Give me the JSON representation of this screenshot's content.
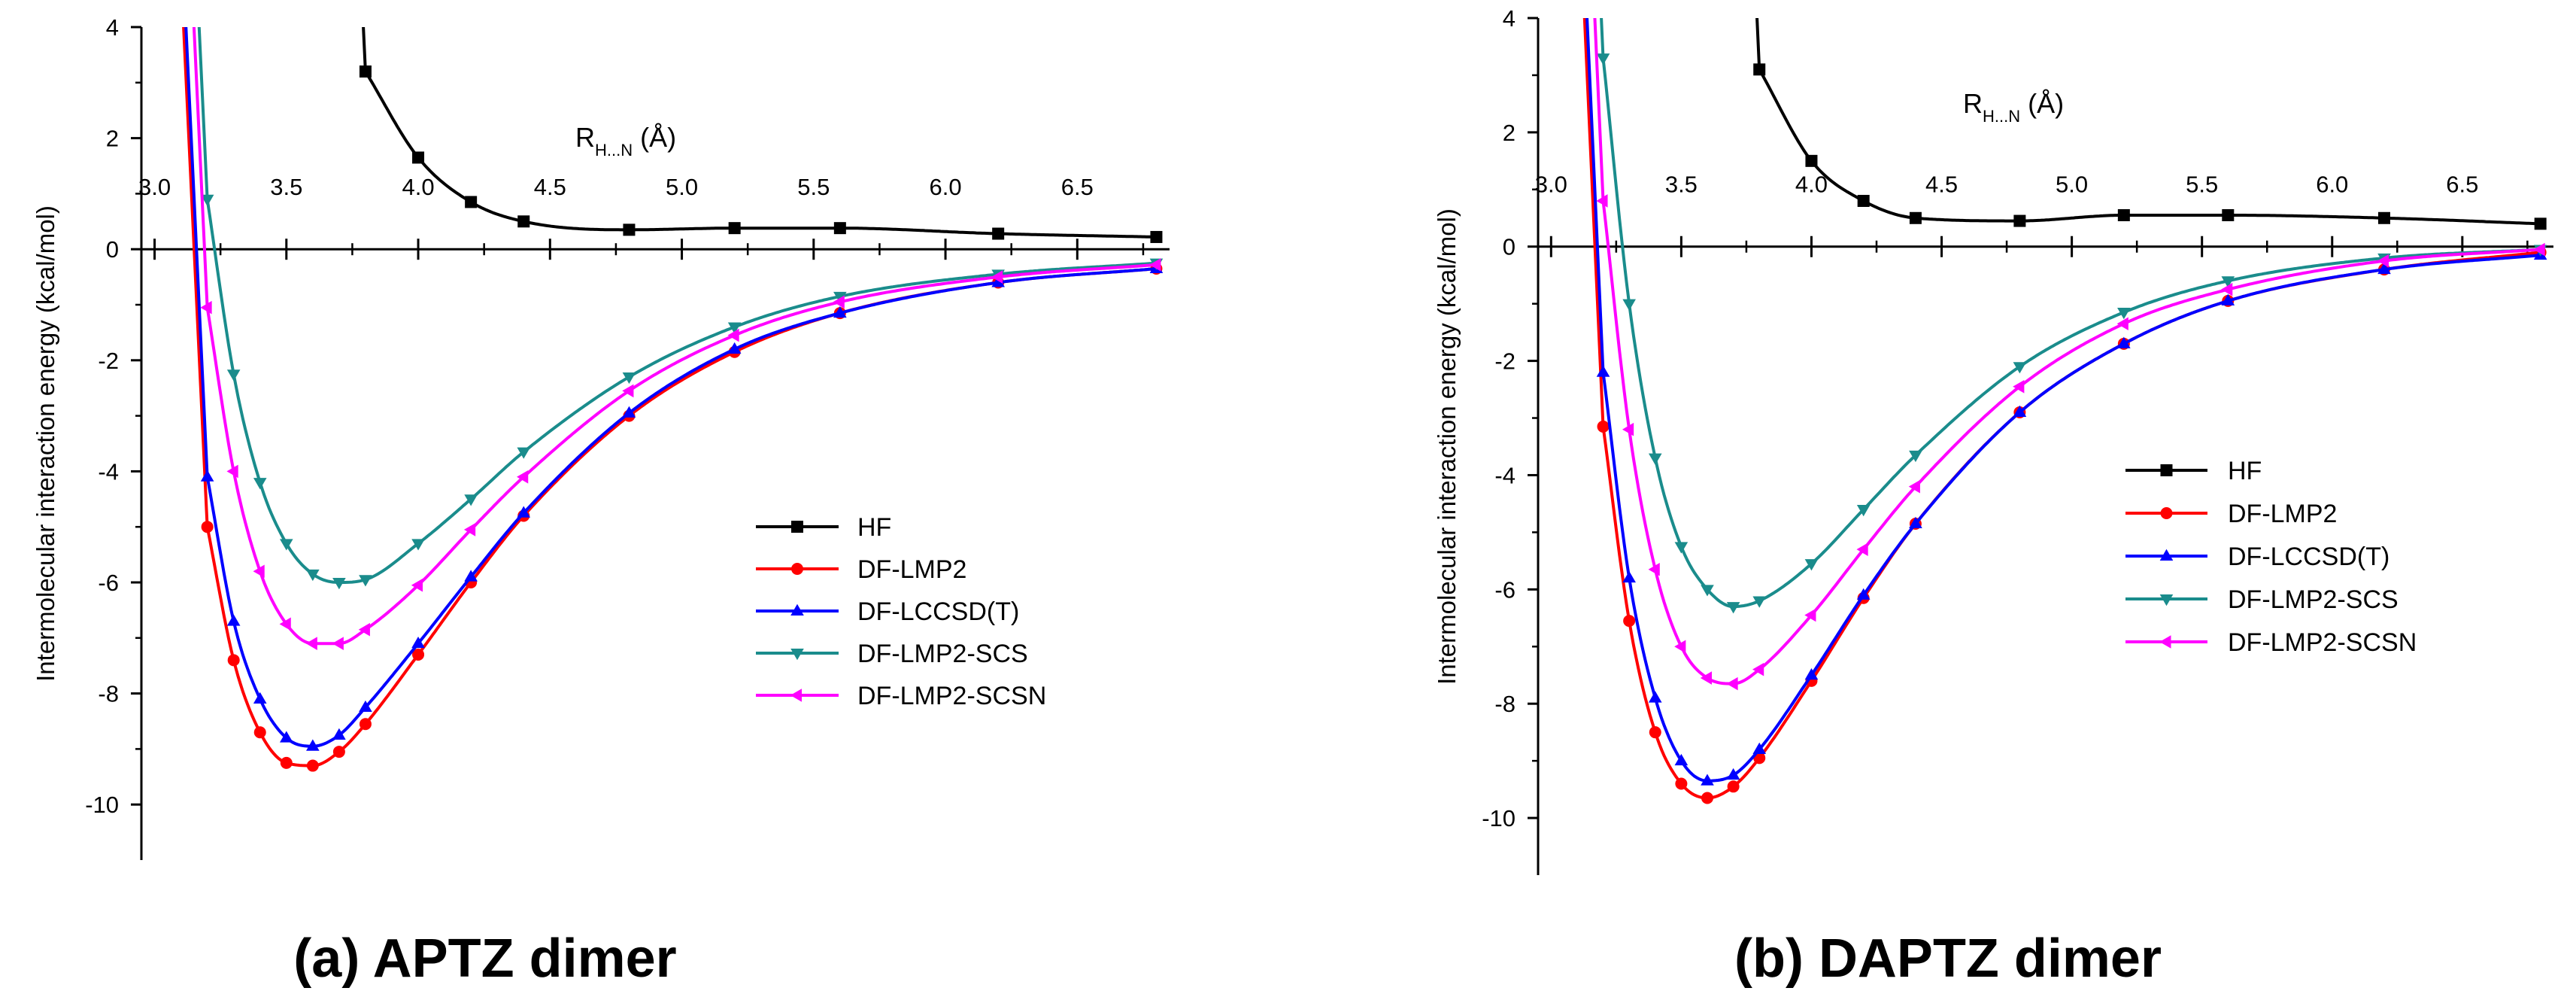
{
  "chart_data": [
    {
      "type": "line",
      "caption": "(a) APTZ dimer",
      "ylabel": "Intermolecular interaction energy (kcal/mol)",
      "xlabel_main": "R",
      "xlabel_sub": "H...N",
      "xlabel_unit": "(Å)",
      "xlim": [
        2.95,
        6.85
      ],
      "ylim": [
        -11,
        4
      ],
      "x_ticks": [
        3.0,
        3.5,
        4.0,
        4.5,
        5.0,
        5.5,
        6.0,
        6.5
      ],
      "x_tick_labels": [
        "3.0",
        "3.5",
        "4.0",
        "4.5",
        "5.0",
        "5.5",
        "6.0",
        "6.5"
      ],
      "y_ticks": [
        4,
        2,
        0,
        -2,
        -4,
        -6,
        -8,
        -10
      ],
      "y_tick_labels": [
        "4",
        "2",
        "0",
        "-2",
        "-4",
        "-6",
        "-8",
        "-10"
      ],
      "legend_position": "center-right",
      "series": [
        {
          "name": "HF",
          "color": "#000000",
          "marker": "square",
          "x": [
            3.8,
            4.0,
            4.2,
            4.4,
            4.8,
            5.2,
            5.6,
            6.2,
            6.8
          ],
          "y": [
            3.2,
            1.65,
            0.85,
            0.5,
            0.35,
            0.38,
            0.38,
            0.28,
            0.22
          ]
        },
        {
          "name": "DF-LMP2",
          "color": "#ff0000",
          "marker": "circle",
          "x": [
            3.2,
            3.3,
            3.4,
            3.5,
            3.6,
            3.7,
            3.8,
            4.0,
            4.2,
            4.4,
            4.8,
            5.2,
            5.6,
            6.2,
            6.8
          ],
          "y": [
            -5.0,
            -7.4,
            -8.7,
            -9.25,
            -9.3,
            -9.05,
            -8.55,
            -7.3,
            -6.0,
            -4.8,
            -3.0,
            -1.85,
            -1.15,
            -0.6,
            -0.35
          ]
        },
        {
          "name": "DF-LCCSD(T)",
          "color": "#0000ff",
          "marker": "triangle-up",
          "x": [
            3.2,
            3.3,
            3.4,
            3.5,
            3.6,
            3.7,
            3.8,
            4.0,
            4.2,
            4.4,
            4.8,
            5.2,
            5.6,
            6.2,
            6.8
          ],
          "y": [
            -4.1,
            -6.7,
            -8.1,
            -8.8,
            -8.95,
            -8.75,
            -8.25,
            -7.1,
            -5.9,
            -4.75,
            -2.95,
            -1.8,
            -1.15,
            -0.6,
            -0.35
          ]
        },
        {
          "name": "DF-LMP2-SCS",
          "color": "#1a8c8c",
          "marker": "triangle-down",
          "x": [
            3.2,
            3.3,
            3.4,
            3.5,
            3.6,
            3.7,
            3.8,
            4.0,
            4.2,
            4.4,
            4.8,
            5.2,
            5.6,
            6.2,
            6.8
          ],
          "y": [
            0.9,
            -2.25,
            -4.2,
            -5.3,
            -5.85,
            -6.0,
            -5.95,
            -5.3,
            -4.5,
            -3.65,
            -2.3,
            -1.4,
            -0.85,
            -0.45,
            -0.25
          ]
        },
        {
          "name": "DF-LMP2-SCSN",
          "color": "#ff00ff",
          "marker": "triangle-left",
          "x": [
            3.2,
            3.3,
            3.4,
            3.5,
            3.6,
            3.7,
            3.8,
            4.0,
            4.2,
            4.4,
            4.8,
            5.2,
            5.6,
            6.2,
            6.8
          ],
          "y": [
            -1.05,
            -4.0,
            -5.8,
            -6.75,
            -7.1,
            -7.1,
            -6.85,
            -6.05,
            -5.05,
            -4.1,
            -2.55,
            -1.55,
            -0.95,
            -0.5,
            -0.28
          ]
        }
      ]
    },
    {
      "type": "line",
      "caption": "(b) DAPTZ dimer",
      "ylabel": "Intermolecular interaction energy (kcal/mol)",
      "xlabel_main": "R",
      "xlabel_sub": "H...N",
      "xlabel_unit": "(Å)",
      "xlim": [
        2.95,
        6.85
      ],
      "ylim": [
        -11,
        4
      ],
      "x_ticks": [
        3.0,
        3.5,
        4.0,
        4.5,
        5.0,
        5.5,
        6.0,
        6.5
      ],
      "x_tick_labels": [
        "3.0",
        "3.5",
        "4.0",
        "4.5",
        "5.0",
        "5.5",
        "6.0",
        "6.5"
      ],
      "y_ticks": [
        4,
        2,
        0,
        -2,
        -4,
        -6,
        -8,
        -10
      ],
      "y_tick_labels": [
        "4",
        "2",
        "0",
        "-2",
        "-4",
        "-6",
        "-8",
        "-10"
      ],
      "legend_position": "center-right",
      "series": [
        {
          "name": "HF",
          "color": "#000000",
          "marker": "square",
          "x": [
            3.8,
            4.0,
            4.2,
            4.4,
            4.8,
            5.2,
            5.6,
            6.2,
            6.8
          ],
          "y": [
            3.1,
            1.5,
            0.8,
            0.5,
            0.45,
            0.55,
            0.55,
            0.5,
            0.4
          ]
        },
        {
          "name": "DF-LMP2",
          "color": "#ff0000",
          "marker": "circle",
          "x": [
            3.2,
            3.3,
            3.4,
            3.5,
            3.6,
            3.7,
            3.8,
            4.0,
            4.2,
            4.4,
            4.8,
            5.2,
            5.6,
            6.2,
            6.8
          ],
          "y": [
            -3.15,
            -6.55,
            -8.5,
            -9.4,
            -9.65,
            -9.45,
            -8.95,
            -7.6,
            -6.15,
            -4.85,
            -2.9,
            -1.7,
            -0.95,
            -0.4,
            -0.1
          ]
        },
        {
          "name": "DF-LCCSD(T)",
          "color": "#0000ff",
          "marker": "triangle-up",
          "x": [
            3.2,
            3.3,
            3.4,
            3.5,
            3.6,
            3.7,
            3.8,
            4.0,
            4.2,
            4.4,
            4.8,
            5.2,
            5.6,
            6.2,
            6.8
          ],
          "y": [
            -2.2,
            -5.8,
            -7.9,
            -9.0,
            -9.35,
            -9.25,
            -8.8,
            -7.5,
            -6.1,
            -4.85,
            -2.9,
            -1.7,
            -0.95,
            -0.4,
            -0.15
          ]
        },
        {
          "name": "DF-LMP2-SCS",
          "color": "#1a8c8c",
          "marker": "triangle-down",
          "x": [
            3.2,
            3.3,
            3.4,
            3.5,
            3.6,
            3.7,
            3.8,
            4.0,
            4.2,
            4.4,
            4.8,
            5.2,
            5.6,
            6.2,
            6.8
          ],
          "y": [
            3.3,
            -1.0,
            -3.7,
            -5.25,
            -6.0,
            -6.3,
            -6.2,
            -5.55,
            -4.6,
            -3.65,
            -2.1,
            -1.15,
            -0.6,
            -0.2,
            -0.05
          ]
        },
        {
          "name": "DF-LMP2-SCSN",
          "color": "#ff00ff",
          "marker": "triangle-left",
          "x": [
            3.2,
            3.3,
            3.4,
            3.5,
            3.6,
            3.7,
            3.8,
            4.0,
            4.2,
            4.4,
            4.8,
            5.2,
            5.6,
            6.2,
            6.8
          ],
          "y": [
            0.8,
            -3.2,
            -5.65,
            -7.0,
            -7.55,
            -7.65,
            -7.4,
            -6.45,
            -5.3,
            -4.2,
            -2.45,
            -1.35,
            -0.75,
            -0.25,
            -0.05
          ]
        }
      ]
    }
  ]
}
